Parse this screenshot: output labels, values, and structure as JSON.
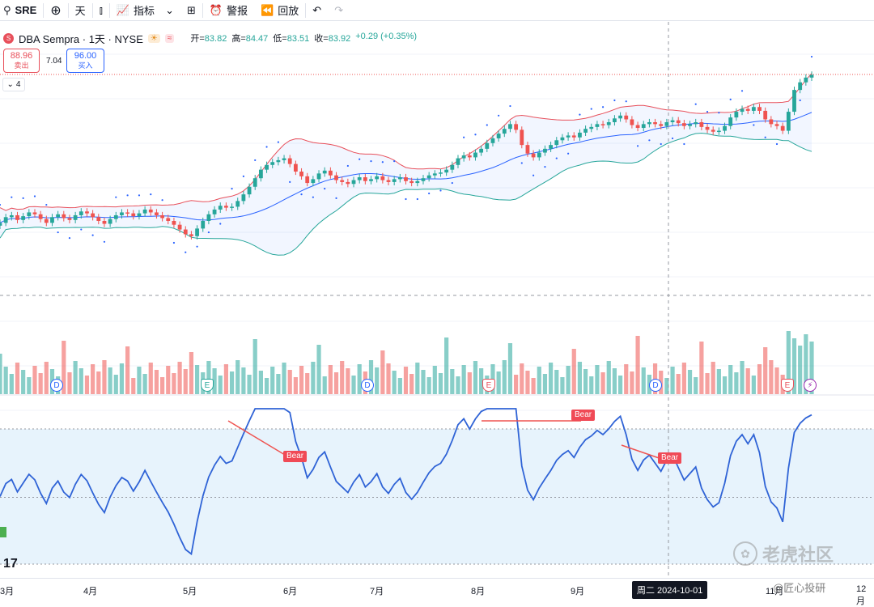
{
  "toolbar": {
    "symbol": "SRE",
    "interval": "天",
    "indicators_label": "指标",
    "alert_label": "警报",
    "replay_label": "回放"
  },
  "legend": {
    "title": "DBA Sempra · 1天 · NYSE",
    "logo_text": "S",
    "open_label": "开",
    "open": "83.82",
    "high_label": "高",
    "high": "84.47",
    "low_label": "低",
    "low": "83.51",
    "close_label": "收",
    "close": "83.92",
    "change": "+0.29 (+0.35%)"
  },
  "quote": {
    "sell_price": "88.96",
    "sell_label": "卖出",
    "spread": "7.04",
    "buy_price": "96.00",
    "buy_label": "买入",
    "collapse_count": "4"
  },
  "annotations": {
    "bear": "Bear"
  },
  "time_axis": {
    "months": [
      "3月",
      "4月",
      "5月",
      "6月",
      "7月",
      "8月",
      "9月",
      "11月",
      "12月"
    ],
    "crosshair_date": "周二 2024-10-01"
  },
  "events": [
    "D",
    "E",
    "D",
    "E",
    "D",
    "E"
  ],
  "watermark": {
    "brand": "老虎社区",
    "user": "@匠心投研"
  },
  "colors": {
    "up": "#26a69a",
    "down": "#ef5350",
    "band_upper": "#e8505b",
    "band_lower": "#26a69a",
    "basis": "#2962ff",
    "rsi": "#2f63d6"
  },
  "chart_data": {
    "type": "candlestick",
    "title": "DBA Sempra · 1天 · NYSE",
    "ylim": [
      64,
      90
    ],
    "close": [
      74.2,
      74.8,
      75.0,
      74.5,
      74.9,
      75.3,
      75.1,
      74.6,
      74.2,
      74.8,
      75.1,
      74.7,
      74.5,
      75.0,
      75.4,
      75.2,
      74.8,
      74.4,
      74.1,
      74.6,
      75.0,
      75.3,
      75.2,
      74.9,
      75.2,
      75.6,
      75.3,
      75.0,
      74.7,
      74.4,
      74.0,
      73.5,
      73.0,
      72.8,
      73.6,
      74.4,
      75.1,
      75.6,
      76.0,
      75.8,
      75.9,
      76.5,
      77.2,
      78.0,
      78.9,
      79.8,
      80.3,
      80.6,
      80.8,
      81.0,
      80.4,
      79.6,
      79.1,
      78.4,
      78.8,
      79.4,
      79.7,
      79.2,
      78.7,
      78.5,
      78.3,
      78.7,
      79.0,
      78.6,
      78.8,
      79.1,
      78.7,
      78.5,
      78.8,
      79.0,
      78.6,
      78.4,
      78.6,
      78.9,
      79.2,
      79.4,
      79.5,
      79.8,
      80.3,
      81.0,
      81.3,
      81.1,
      81.6,
      82.0,
      82.6,
      83.1,
      83.6,
      84.1,
      84.6,
      84.0,
      82.4,
      81.5,
      81.1,
      81.6,
      82.0,
      82.4,
      82.9,
      83.2,
      83.4,
      83.2,
      83.7,
      84.1,
      84.3,
      84.6,
      84.5,
      84.8,
      85.2,
      85.5,
      85.1,
      84.5,
      84.2,
      84.6,
      84.8,
      84.6,
      84.4,
      84.8,
      85.0,
      84.7,
      84.4,
      84.6,
      84.8,
      84.3,
      84.0,
      83.8,
      83.9,
      84.4,
      85.3,
      85.9,
      86.2,
      86.0,
      86.4,
      86.0,
      85.1,
      84.6,
      84.4,
      83.9,
      85.9,
      88.2,
      89.0,
      89.5,
      89.8
    ]
  }
}
